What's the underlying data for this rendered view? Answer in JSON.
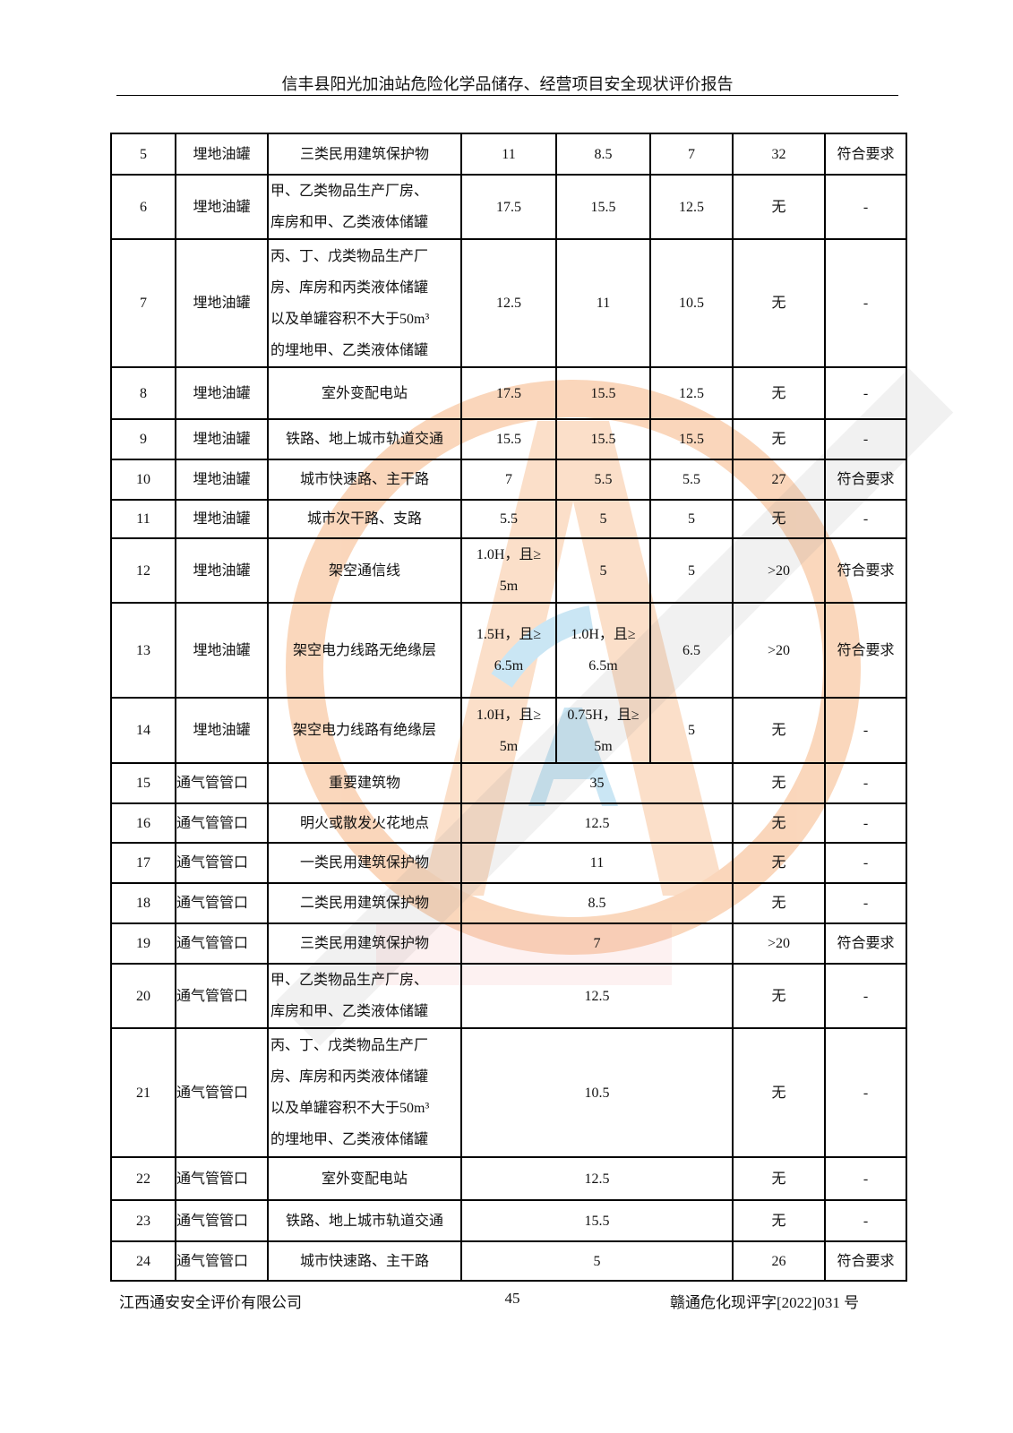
{
  "header": {
    "title": "信丰县阳光加油站危险化学品储存、经营项目安全现状评价报告"
  },
  "table": {
    "rows": [
      {
        "no": "5",
        "type": "埋地油罐",
        "item": [
          "三类民用建筑保护物"
        ],
        "v": [
          [
            "11"
          ],
          [
            "8.5"
          ],
          [
            "7"
          ]
        ],
        "actual": "32",
        "result": "符合要求"
      },
      {
        "no": "6",
        "type": "埋地油罐",
        "item": [
          "甲、乙类物品生产厂房、",
          "库房和甲、乙类液体储罐"
        ],
        "v": [
          [
            "17.5"
          ],
          [
            "15.5"
          ],
          [
            "12.5"
          ]
        ],
        "actual": "无",
        "result": "-"
      },
      {
        "no": "7",
        "type": "埋地油罐",
        "item": [
          "丙、丁、戊类物品生产厂",
          "房、库房和丙类液体储罐",
          "以及单罐容积不大于50m³",
          "的埋地甲、乙类液体储罐"
        ],
        "v": [
          [
            "12.5"
          ],
          [
            "11"
          ],
          [
            "10.5"
          ]
        ],
        "actual": "无",
        "result": "-"
      },
      {
        "no": "8",
        "type": "埋地油罐",
        "item": [
          "室外变配电站"
        ],
        "v": [
          [
            "17.5"
          ],
          [
            "15.5"
          ],
          [
            "12.5"
          ]
        ],
        "actual": "无",
        "result": "-"
      },
      {
        "no": "9",
        "type": "埋地油罐",
        "item": [
          "铁路、地上城市轨道交通"
        ],
        "v": [
          [
            "15.5"
          ],
          [
            "15.5"
          ],
          [
            "15.5"
          ]
        ],
        "actual": "无",
        "result": "-"
      },
      {
        "no": "10",
        "type": "埋地油罐",
        "item": [
          "城市快速路、主干路"
        ],
        "v": [
          [
            "7"
          ],
          [
            "5.5"
          ],
          [
            "5.5"
          ]
        ],
        "actual": "27",
        "result": "符合要求"
      },
      {
        "no": "11",
        "type": "埋地油罐",
        "item": [
          "城市次干路、支路"
        ],
        "v": [
          [
            "5.5"
          ],
          [
            "5"
          ],
          [
            "5"
          ]
        ],
        "actual": "无",
        "result": "-"
      },
      {
        "no": "12",
        "type": "埋地油罐",
        "item": [
          "架空通信线"
        ],
        "v": [
          [
            "1.0H，且≥",
            "5m"
          ],
          [
            "5"
          ],
          [
            "5"
          ]
        ],
        "actual": ">20",
        "result": "符合要求"
      },
      {
        "no": "13",
        "type": "埋地油罐",
        "item": [
          "架空电力线路无绝缘层"
        ],
        "v": [
          [
            "1.5H，且≥",
            "6.5m"
          ],
          [
            "1.0H，且≥",
            "6.5m"
          ],
          [
            "6.5"
          ]
        ],
        "actual": ">20",
        "result": "符合要求"
      },
      {
        "no": "14",
        "type": "埋地油罐",
        "item": [
          "架空电力线路有绝缘层"
        ],
        "v": [
          [
            "1.0H，且≥",
            "5m"
          ],
          [
            "0.75H，且≥",
            "5m"
          ],
          [
            "5"
          ]
        ],
        "actual": "无",
        "result": "-"
      },
      {
        "no": "15",
        "type": "通气管管口",
        "item": [
          "重要建筑物"
        ],
        "merged": "35",
        "actual": "无",
        "result": "-"
      },
      {
        "no": "16",
        "type": "通气管管口",
        "item": [
          "明火或散发火花地点"
        ],
        "merged": "12.5",
        "actual": "无",
        "result": "-"
      },
      {
        "no": "17",
        "type": "通气管管口",
        "item": [
          "一类民用建筑保护物"
        ],
        "merged": "11",
        "actual": "无",
        "result": "-"
      },
      {
        "no": "18",
        "type": "通气管管口",
        "item": [
          "二类民用建筑保护物"
        ],
        "merged": "8.5",
        "actual": "无",
        "result": "-"
      },
      {
        "no": "19",
        "type": "通气管管口",
        "item": [
          "三类民用建筑保护物"
        ],
        "merged": "7",
        "actual": ">20",
        "result": "符合要求"
      },
      {
        "no": "20",
        "type": "通气管管口",
        "item": [
          "甲、乙类物品生产厂房、",
          "库房和甲、乙类液体储罐"
        ],
        "merged": "12.5",
        "actual": "无",
        "result": "-"
      },
      {
        "no": "21",
        "type": "通气管管口",
        "item": [
          "丙、丁、戊类物品生产厂",
          "房、库房和丙类液体储罐",
          "以及单罐容积不大于50m³",
          "的埋地甲、乙类液体储罐"
        ],
        "merged": "10.5",
        "actual": "无",
        "result": "-"
      },
      {
        "no": "22",
        "type": "通气管管口",
        "item": [
          "室外变配电站"
        ],
        "merged": "12.5",
        "actual": "无",
        "result": "-"
      },
      {
        "no": "23",
        "type": "通气管管口",
        "item": [
          "铁路、地上城市轨道交通"
        ],
        "merged": "15.5",
        "actual": "无",
        "result": "-"
      },
      {
        "no": "24",
        "type": "通气管管口",
        "item": [
          "城市快速路、主干路"
        ],
        "merged": "5",
        "actual": "26",
        "result": "符合要求"
      }
    ]
  },
  "watermark": {
    "text": "江西通安安全评价有限公司",
    "short": "江西通安",
    "logo_letter": "A",
    "ring_color": "#f4a66a",
    "text_color": "#8a8a8a",
    "pink": "#f08c8c"
  },
  "footer": {
    "company": "江西通安安全评价有限公司",
    "page": "45",
    "doc_no": "赣通危化现评字[2022]031 号"
  }
}
